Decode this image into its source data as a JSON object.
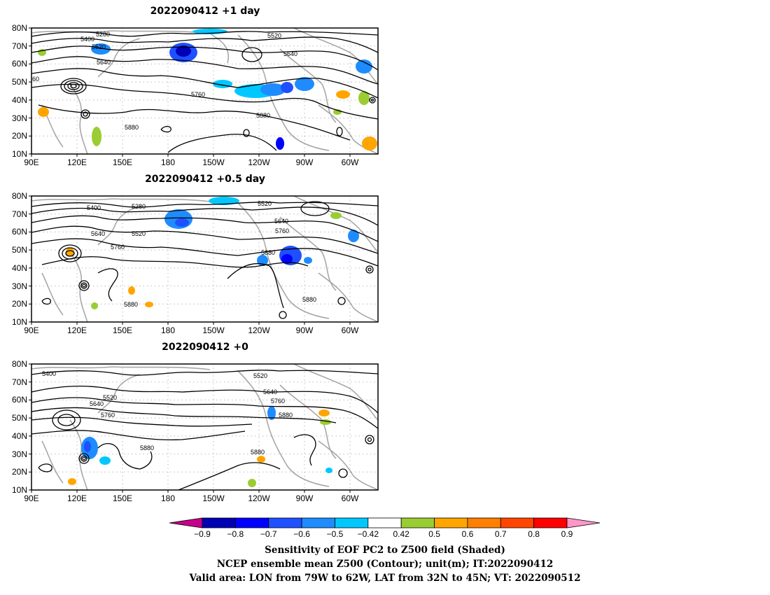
{
  "panels": [
    {
      "title": "2022090412  +1 day",
      "lat_labels": [
        "80N",
        "70N",
        "60N",
        "50N",
        "40N",
        "30N",
        "20N",
        "10N"
      ],
      "lon_labels": [
        "90E",
        "120E",
        "150E",
        "180",
        "150W",
        "120W",
        "90W",
        "60W"
      ],
      "contour_labels": [
        "5280",
        "5400",
        "5520",
        "5640",
        "5760",
        "5880",
        "5880",
        "5520",
        "5640",
        "60"
      ]
    },
    {
      "title": "2022090412  +0.5 day",
      "lat_labels": [
        "80N",
        "70N",
        "60N",
        "50N",
        "40N",
        "30N",
        "20N",
        "10N"
      ],
      "lon_labels": [
        "90E",
        "120E",
        "150E",
        "180",
        "150W",
        "120W",
        "90W",
        "60W"
      ],
      "contour_labels": [
        "5400",
        "5280",
        "5520",
        "5640",
        "5520",
        "5760",
        "5880",
        "5520",
        "5640",
        "5760",
        "5880"
      ]
    },
    {
      "title": "2022090412  +0",
      "lat_labels": [
        "80N",
        "70N",
        "60N",
        "50N",
        "40N",
        "30N",
        "20N",
        "10N"
      ],
      "lon_labels": [
        "90E",
        "120E",
        "150E",
        "180",
        "150W",
        "120W",
        "90W",
        "60W"
      ],
      "contour_labels": [
        "5400",
        "5520",
        "5640",
        "5760",
        "5880",
        "5520",
        "5640",
        "5760",
        "5880",
        "5880"
      ]
    }
  ],
  "colorbar": {
    "labels": [
      "-0.9",
      "-0.8",
      "-0.7",
      "-0.6",
      "-0.5",
      "-0.42",
      "0.42",
      "0.5",
      "0.6",
      "0.7",
      "0.8",
      "0.9"
    ],
    "colors": [
      "#0000b4",
      "#0000ff",
      "#1e50ff",
      "#1e8cff",
      "#00c8ff",
      "#ffffff",
      "#9acd32",
      "#ffa500",
      "#ff7f00",
      "#ff4500",
      "#ff0000"
    ],
    "low_end_color": "#c8008c",
    "high_end_color": "#ff96c8"
  },
  "caption": [
    "Sensitivity of EOF PC2 to Z500 field (Shaded)",
    "NCEP ensemble mean Z500 (Contour); unit(m); IT:2022090412",
    "Valid area: LON from 79W to 62W, LAT from 32N to 45N; VT: 2022090512"
  ]
}
